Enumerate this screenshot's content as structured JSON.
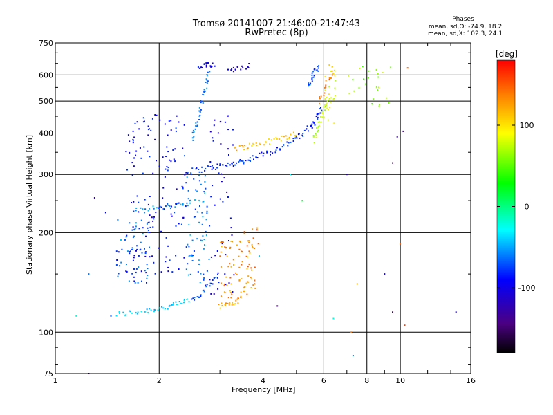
{
  "chart_data": {
    "type": "scatter",
    "title": "Tromsø 20141007 21:46:00-21:47:43",
    "subtitle": "RwPretec (8p)",
    "phase_info": {
      "heading": "Phases",
      "line1": "mean, sd,O: -74.9, 18.2",
      "line2": "mean, sd,X: 102.3, 24.1"
    },
    "xlabel": "Frequency [MHz]",
    "ylabel": "Stationary phase Virtual Height [km]",
    "x_scale": "log",
    "y_scale": "log",
    "xlim": [
      1,
      16
    ],
    "ylim": [
      75,
      750
    ],
    "x_ticks": [
      {
        "value": 1,
        "label": "1"
      },
      {
        "value": 2,
        "label": "2"
      },
      {
        "value": 4,
        "label": "4"
      },
      {
        "value": 6,
        "label": "6"
      },
      {
        "value": 8,
        "label": "8"
      },
      {
        "value": 10,
        "label": "10"
      },
      {
        "value": 16,
        "label": "16"
      }
    ],
    "y_ticks": [
      {
        "value": 75,
        "label": "75"
      },
      {
        "value": 100,
        "label": "100"
      },
      {
        "value": 200,
        "label": "200"
      },
      {
        "value": 300,
        "label": "300"
      },
      {
        "value": 400,
        "label": "400"
      },
      {
        "value": 500,
        "label": "500"
      },
      {
        "value": 600,
        "label": "600"
      },
      {
        "value": 750,
        "label": "750"
      }
    ],
    "grid": true,
    "colorbar": {
      "label": "[deg]",
      "range": [
        -180,
        180
      ],
      "ticks": [
        {
          "value": 100,
          "label": "100"
        },
        {
          "value": 0,
          "label": "0"
        },
        {
          "value": -100,
          "label": "-100"
        }
      ]
    },
    "traces": [
      {
        "f": [
          1.5,
          1.7,
          1.9,
          2.1,
          2.3,
          2.45
        ],
        "h": [
          113,
          115,
          117,
          119,
          122,
          126
        ],
        "phase": -40,
        "n": 45
      },
      {
        "f": [
          2.5,
          2.65,
          2.8,
          2.95
        ],
        "h": [
          125,
          131,
          140,
          150
        ],
        "phase": -75,
        "n": 25
      },
      {
        "f": [
          2.4,
          2.7,
          3.0,
          3.3,
          3.6,
          4.0,
          4.5,
          5.0,
          5.4,
          5.7,
          5.9
        ],
        "h": [
          305,
          312,
          318,
          324,
          332,
          345,
          362,
          385,
          410,
          440,
          480
        ],
        "phase": -80,
        "n": 110
      },
      {
        "f": [
          5.6,
          5.75,
          5.9,
          6.05,
          6.2
        ],
        "h": [
          380,
          410,
          440,
          480,
          520
        ],
        "phase": 70,
        "n": 30
      },
      {
        "f": [
          5.8,
          6.0,
          6.2,
          6.4
        ],
        "h": [
          500,
          540,
          580,
          620
        ],
        "phase": 140,
        "n": 16
      },
      {
        "f": [
          3.3,
          3.6,
          3.9,
          4.3,
          4.7,
          5.0
        ],
        "h": [
          360,
          365,
          372,
          380,
          390,
          400
        ],
        "phase": 115,
        "n": 40
      },
      {
        "f": [
          3.0,
          3.2,
          3.4
        ],
        "h": [
          120,
          122,
          124
        ],
        "phase": 120,
        "n": 18
      },
      {
        "f": [
          3.4,
          3.55,
          3.7
        ],
        "h": [
          125,
          135,
          150
        ],
        "phase": 130,
        "n": 14
      },
      {
        "f": [
          1.7,
          1.9,
          2.1,
          2.3,
          2.5
        ],
        "h": [
          232,
          236,
          240,
          244,
          248
        ],
        "phase": -55,
        "n": 30
      },
      {
        "f": [
          2.5,
          2.6,
          2.7,
          2.8
        ],
        "h": [
          380,
          450,
          530,
          620
        ],
        "phase": -60,
        "n": 40
      },
      {
        "f": [
          2.6,
          2.75,
          2.9
        ],
        "h": [
          630,
          640,
          648
        ],
        "phase": -95,
        "n": 18
      },
      {
        "f": [
          3.2,
          3.4,
          3.7
        ],
        "h": [
          620,
          632,
          645
        ],
        "phase": -110,
        "n": 16
      },
      {
        "f": [
          5.4,
          5.55,
          5.7,
          5.8
        ],
        "h": [
          550,
          590,
          620,
          645
        ],
        "phase": -70,
        "n": 22
      }
    ],
    "clusters": [
      {
        "f": [
          1.6,
          2.4
        ],
        "h": [
          150,
          460
        ],
        "phase": -90,
        "n": 150
      },
      {
        "f": [
          1.5,
          1.9
        ],
        "h": [
          140,
          220
        ],
        "phase": -70,
        "n": 60
      },
      {
        "f": [
          2.4,
          2.8
        ],
        "h": [
          140,
          300
        ],
        "phase": -60,
        "n": 70
      },
      {
        "f": [
          2.8,
          3.3
        ],
        "h": [
          130,
          460
        ],
        "phase": -100,
        "n": 50
      },
      {
        "f": [
          3.0,
          3.3
        ],
        "h": [
          125,
          190
        ],
        "phase": 130,
        "n": 35
      },
      {
        "f": [
          3.3,
          3.8
        ],
        "h": [
          130,
          190
        ],
        "phase": 130,
        "n": 40
      },
      {
        "f": [
          3.5,
          3.9
        ],
        "h": [
          180,
          210
        ],
        "phase": 145,
        "n": 10
      },
      {
        "f": [
          6.0,
          6.5
        ],
        "h": [
          400,
          650
        ],
        "phase": 90,
        "n": 25
      },
      {
        "f": [
          7.0,
          9.5
        ],
        "h": [
          480,
          650
        ],
        "phase": 60,
        "n": 25
      }
    ],
    "scatter_points": [
      {
        "f": 1.3,
        "h": 255,
        "phase": -130
      },
      {
        "f": 1.25,
        "h": 150,
        "phase": -60
      },
      {
        "f": 1.15,
        "h": 112,
        "phase": -20
      },
      {
        "f": 1.25,
        "h": 75,
        "phase": -120
      },
      {
        "f": 1.45,
        "h": 112,
        "phase": -70
      },
      {
        "f": 1.4,
        "h": 230,
        "phase": -90
      },
      {
        "f": 1.55,
        "h": 190,
        "phase": -40
      },
      {
        "f": 4.4,
        "h": 120,
        "phase": -150
      },
      {
        "f": 4.8,
        "h": 300,
        "phase": -30
      },
      {
        "f": 7.0,
        "h": 300,
        "phase": -120
      },
      {
        "f": 7.2,
        "h": 100,
        "phase": 140
      },
      {
        "f": 7.3,
        "h": 85,
        "phase": -60
      },
      {
        "f": 7.5,
        "h": 140,
        "phase": 120
      },
      {
        "f": 9.0,
        "h": 150,
        "phase": -110
      },
      {
        "f": 9.5,
        "h": 325,
        "phase": -140
      },
      {
        "f": 9.5,
        "h": 115,
        "phase": -140
      },
      {
        "f": 10.0,
        "h": 185,
        "phase": 150
      },
      {
        "f": 10.3,
        "h": 105,
        "phase": 160
      },
      {
        "f": 14.5,
        "h": 115,
        "phase": -110
      },
      {
        "f": 10.2,
        "h": 405,
        "phase": -140
      },
      {
        "f": 9.8,
        "h": 390,
        "phase": -130
      },
      {
        "f": 10.5,
        "h": 630,
        "phase": 150
      },
      {
        "f": 6.4,
        "h": 110,
        "phase": -20
      },
      {
        "f": 5.2,
        "h": 250,
        "phase": 20
      },
      {
        "f": 3.9,
        "h": 170,
        "phase": -40
      }
    ]
  }
}
